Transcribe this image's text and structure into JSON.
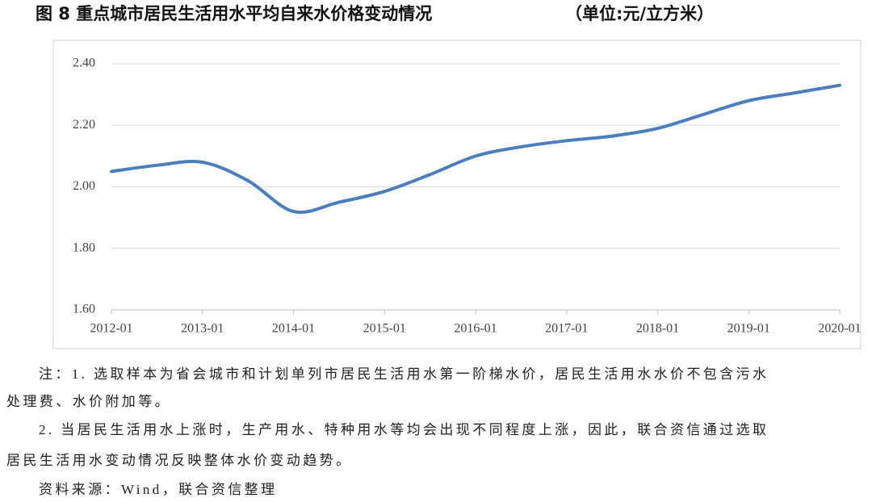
{
  "chart_data": {
    "type": "line",
    "title": "图 8   重点城市居民生活用水平均自来水价格变动情况",
    "subtitle": "（单位:元/立方米）",
    "x": [
      "2012-01",
      "2012-07",
      "2013-01",
      "2013-07",
      "2014-01",
      "2014-07",
      "2015-01",
      "2015-07",
      "2016-01",
      "2016-07",
      "2017-01",
      "2017-07",
      "2018-01",
      "2018-07",
      "2019-01",
      "2019-07",
      "2020-01"
    ],
    "series": [
      {
        "name": "居民生活用水平均自来水价格",
        "color": "#4a7ebf",
        "values": [
          2.05,
          2.07,
          2.08,
          2.02,
          1.92,
          1.95,
          1.985,
          2.04,
          2.1,
          2.13,
          2.15,
          2.165,
          2.19,
          2.235,
          2.28,
          2.305,
          2.33
        ]
      }
    ],
    "xticks": [
      "2012-01",
      "2013-01",
      "2014-01",
      "2015-01",
      "2016-01",
      "2017-01",
      "2018-01",
      "2019-01",
      "2020-01"
    ],
    "ylim": [
      1.6,
      2.4
    ],
    "yticks": [
      {
        "value": 1.6,
        "label": "1.60"
      },
      {
        "value": 1.8,
        "label": "1.80"
      },
      {
        "value": 2.0,
        "label": "2.00"
      },
      {
        "value": 2.2,
        "label": "2.20"
      },
      {
        "value": 2.4,
        "label": "2.40"
      }
    ],
    "grid": true
  },
  "notes": [
    "注：1. 选取样本为省会城市和计划单列市居民生活用水第一阶梯水价，居民生活用水水价不包含污水",
    "处理费、水价附加等。",
    "2. 当居民生活用水上涨时，生产用水、特种用水等均会出现不同程度上涨，因此，联合资信通过选取",
    "居民生活用水变动情况反映整体水价变动趋势。"
  ],
  "source": "资料来源：Wind，联合资信整理"
}
